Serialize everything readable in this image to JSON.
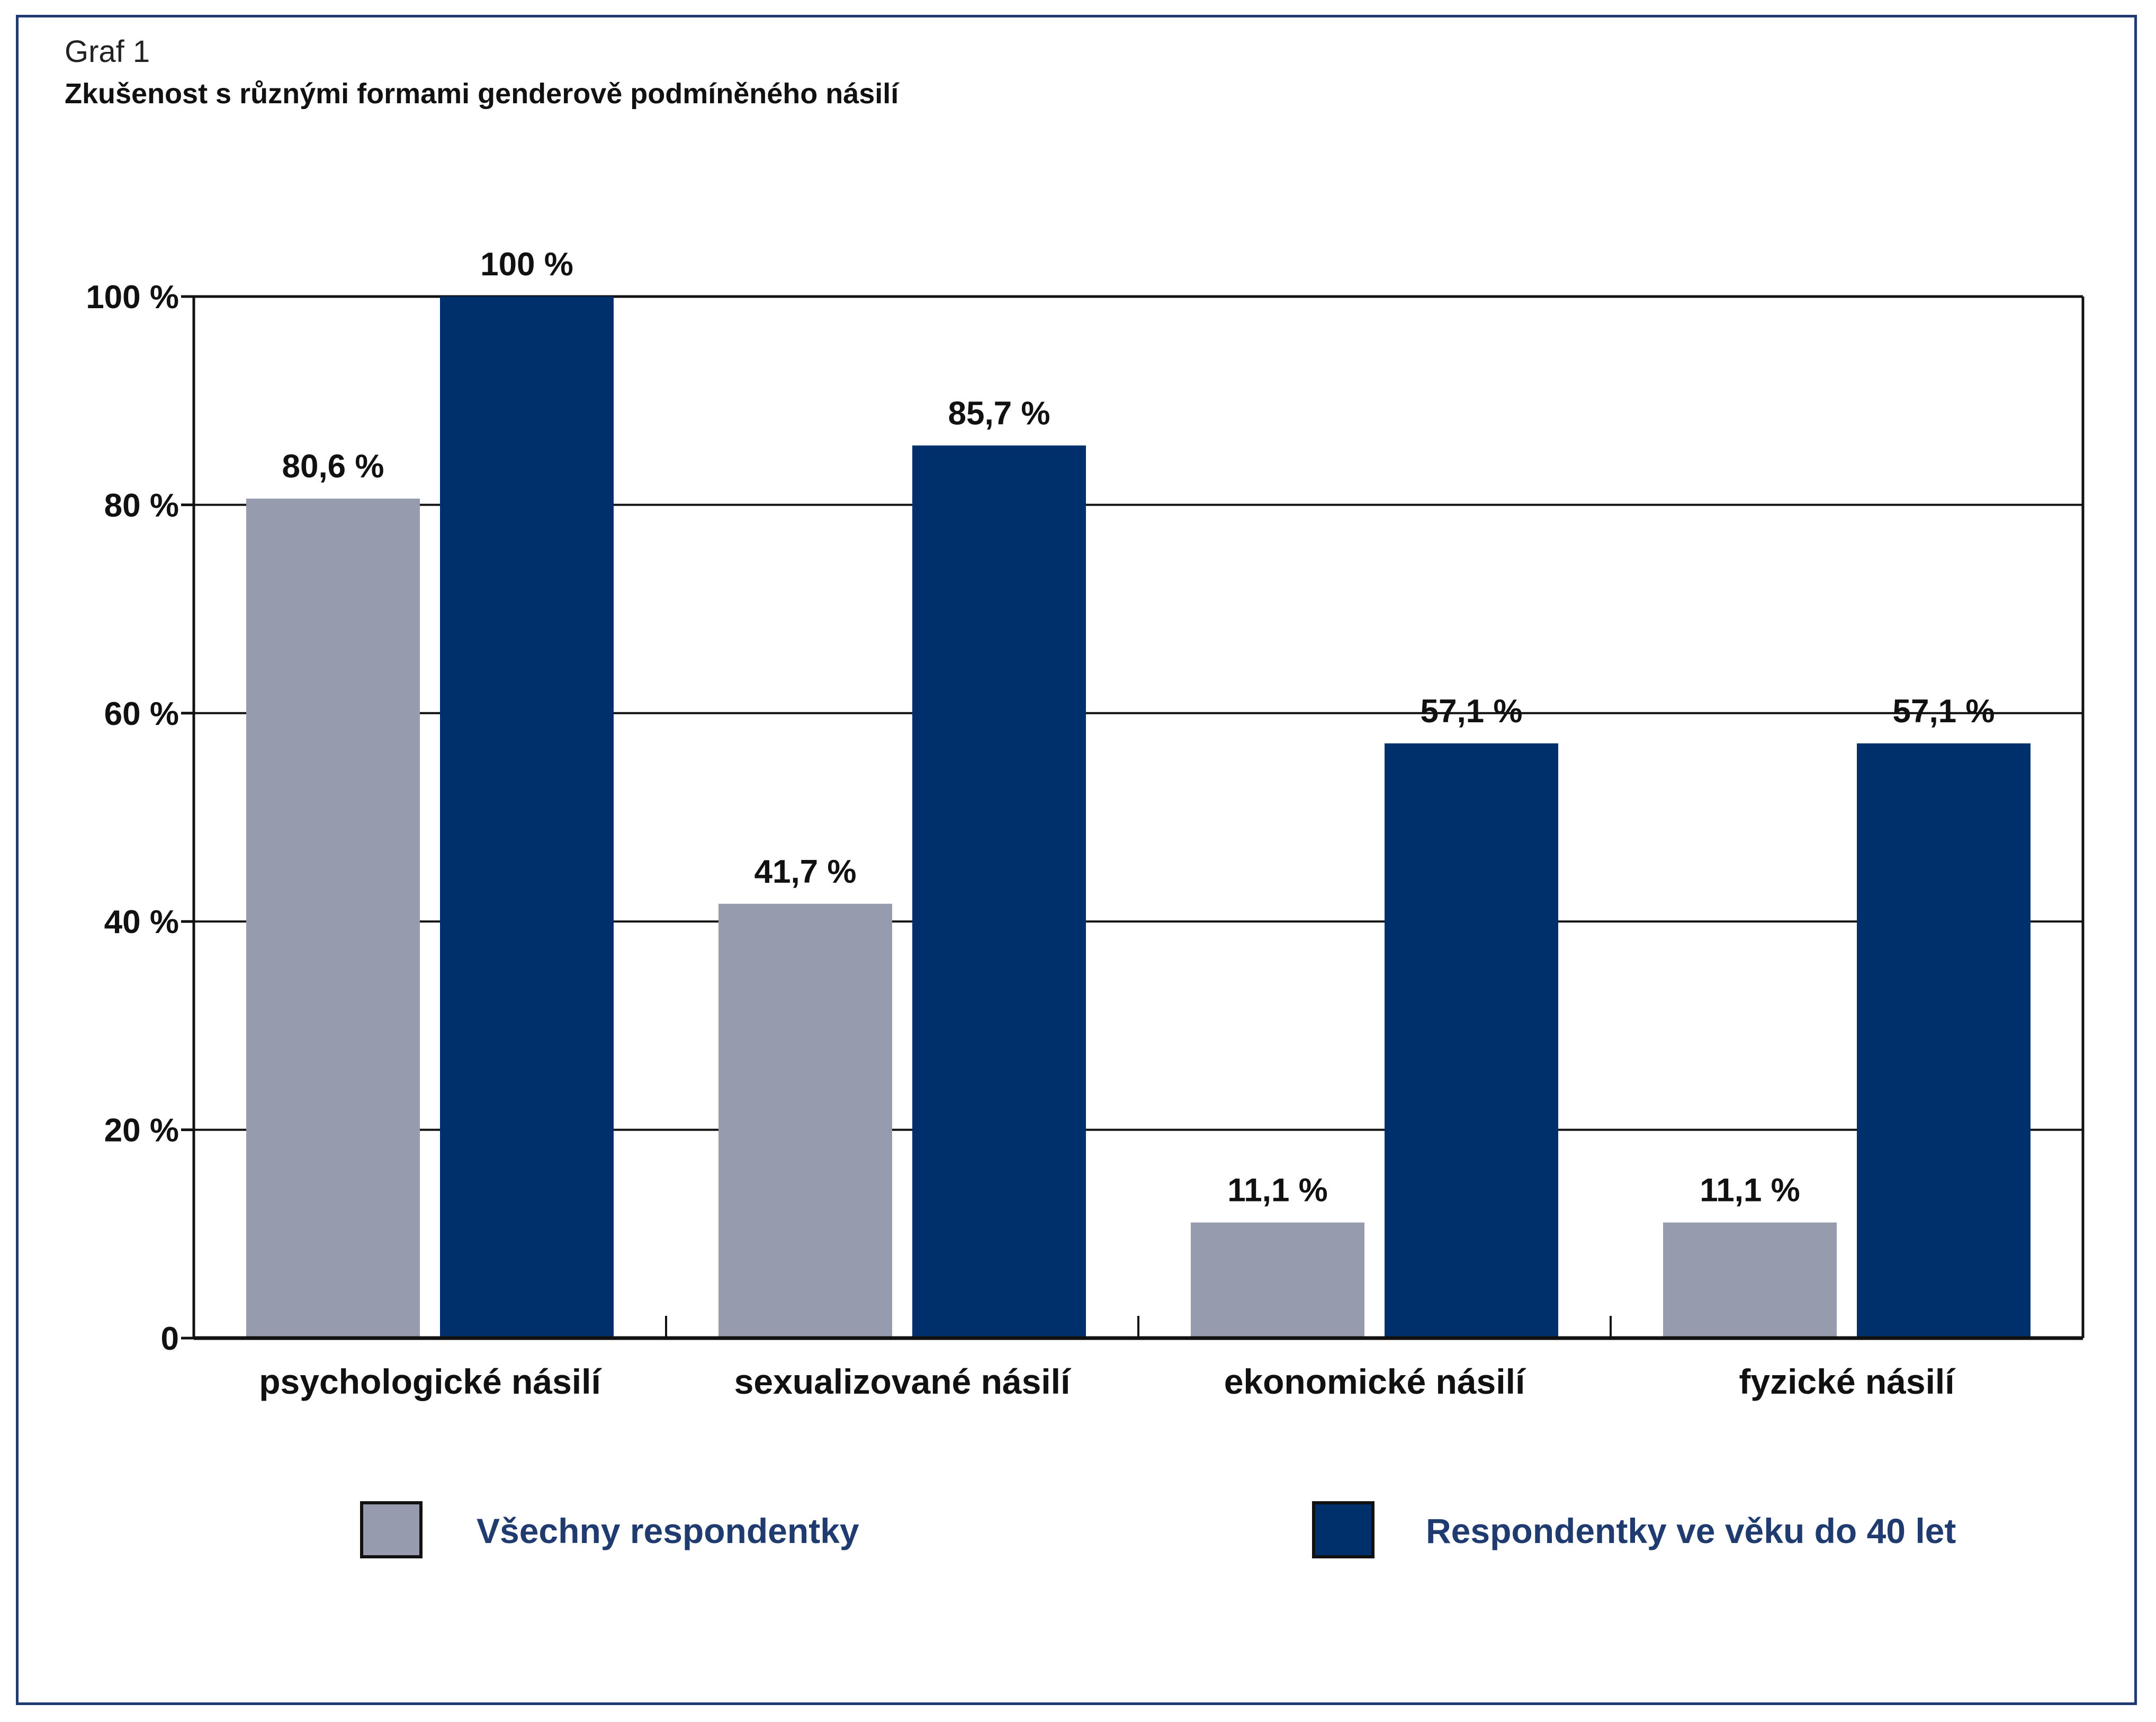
{
  "header": {
    "graf_label": "Graf 1",
    "title": "Zkušenost s různými formami genderově podmíněného násilí"
  },
  "chart_data": {
    "type": "bar",
    "title": "Zkušenost s různými formami genderově podmíněného násilí",
    "categories": [
      "psychologické násilí",
      "sexualizované násilí",
      "ekonomické násilí",
      "fyzické násilí"
    ],
    "series": [
      {
        "name": "Všechny respondentky",
        "color": "#969cad",
        "values": [
          80.6,
          41.7,
          11.1,
          11.1
        ],
        "labels": [
          "80,6 %",
          "41,7 %",
          "11,1 %",
          "11,1 %"
        ]
      },
      {
        "name": "Respondentky ve věku do 40 let",
        "color": "#00306b",
        "values": [
          100,
          85.7,
          57.1,
          57.1
        ],
        "labels": [
          "100 %",
          "85,7 %",
          "57,1 %",
          "57,1 %"
        ]
      }
    ],
    "ylim": [
      0,
      100
    ],
    "yticks": [
      0,
      20,
      40,
      60,
      80,
      100
    ],
    "ytick_labels": [
      "0",
      "20 %",
      "40 %",
      "60 %",
      "80 %",
      "100 %"
    ],
    "grid": true,
    "legend_position": "bottom"
  },
  "legend": {
    "items": [
      {
        "label": "Všechny respondentky",
        "color": "#969cad"
      },
      {
        "label": "Respondentky ve věku do 40 let",
        "color": "#00306b"
      }
    ]
  }
}
